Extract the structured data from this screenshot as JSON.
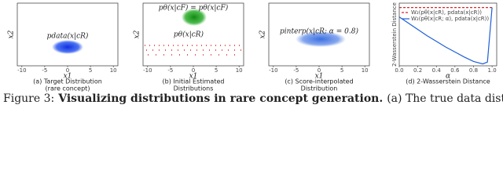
{
  "figure": {
    "panels": [
      {
        "ylabel": "x2",
        "xlabel": "x1",
        "annotation": "pdata(x|cR)",
        "xlim": [
          -11,
          11
        ],
        "xticks": [
          -10,
          -5,
          0,
          5,
          10
        ],
        "caption": [
          "(a) Target Distribution",
          "(rare concept)"
        ]
      },
      {
        "ylabel": "x2",
        "xlabel": "x1",
        "annotation": "pθ(x|cF) = pθ(x|cF)",
        "annotation2": "pθ(x|cR)",
        "xlim": [
          -11,
          11
        ],
        "xticks": [
          -10,
          -5,
          0,
          5,
          10
        ],
        "caption": [
          "(b) Initial Estimated",
          "Distributions"
        ]
      },
      {
        "ylabel": "x2",
        "xlabel": "x1",
        "annotation": "pinterp(x|cR; α = 0.8)",
        "xlim": [
          -11,
          11
        ],
        "xticks": [
          -10,
          -5,
          0,
          5,
          10
        ],
        "caption": [
          "(c) Score-interpolated",
          "Distribution"
        ]
      }
    ],
    "wasserstein": {
      "type": "line",
      "ylabel": "2-Wasserstein Distance",
      "xlabel": "α",
      "x": [
        0,
        0.1,
        0.2,
        0.3,
        0.4,
        0.5,
        0.6,
        0.7,
        0.8,
        0.9,
        0.95,
        1.0
      ],
      "xlim": [
        0,
        1.05
      ],
      "ylim": [
        0,
        1
      ],
      "xticks": [
        {
          "value": 0,
          "label": "0.0"
        },
        {
          "value": 0.2,
          "label": "0.2"
        },
        {
          "value": 0.4,
          "label": "0.4"
        },
        {
          "value": 0.6,
          "label": "0.6"
        },
        {
          "value": 0.8,
          "label": "0.8"
        },
        {
          "value": 1.0,
          "label": "1.0"
        }
      ],
      "series": [
        {
          "name": "W₂(pθ(x|cR), pdata(x|cR))",
          "color": "#d62728",
          "dash": true,
          "values": [
            0.93,
            0.93,
            0.93,
            0.93,
            0.93,
            0.93,
            0.93,
            0.93,
            0.93,
            0.93,
            0.93,
            0.93
          ]
        },
        {
          "name": "W₂(pθ(x|cR; α), pdata(x|cR))",
          "color": "#1f5fd6",
          "dash": false,
          "values": [
            0.78,
            0.68,
            0.58,
            0.48,
            0.39,
            0.3,
            0.22,
            0.14,
            0.07,
            0.03,
            0.06,
            0.93
          ]
        }
      ],
      "caption": "(d) 2-Wasserstein Distance"
    }
  },
  "caption": {
    "label": "Figure 3:",
    "bold": "Visualizing distributions in rare concept generation.",
    "text": "(a) The true data distribution"
  }
}
